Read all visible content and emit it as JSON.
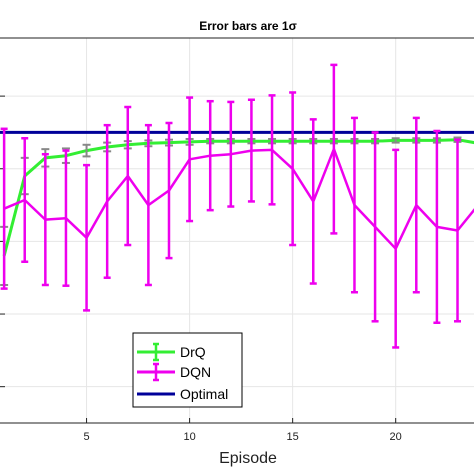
{
  "chart_data": {
    "type": "line",
    "title": "Error bars are 1σ",
    "xlabel": "Episode",
    "ylabel": "",
    "xlim": [
      0.8,
      23.8
    ],
    "ylim": [
      0,
      0.53
    ],
    "grid": true,
    "legend_position": "bottom-left",
    "x_ticks": [
      5,
      10,
      15,
      20
    ],
    "x_tick_labels": [
      "5",
      "10",
      "15",
      "20"
    ],
    "series": [
      {
        "name": "DrQ",
        "color": "#33ee33",
        "error_bar_color": "#888888",
        "x": [
          1,
          2,
          3,
          4,
          5,
          6,
          7,
          8,
          9,
          10,
          11,
          12,
          13,
          14,
          15,
          16,
          17,
          18,
          19,
          20,
          21,
          22,
          23,
          24
        ],
        "y": [
          0.23,
          0.34,
          0.365,
          0.368,
          0.375,
          0.38,
          0.383,
          0.385,
          0.386,
          0.387,
          0.388,
          0.388,
          0.388,
          0.388,
          0.388,
          0.388,
          0.388,
          0.388,
          0.388,
          0.389,
          0.389,
          0.389,
          0.39,
          0.385
        ],
        "err": [
          0.04,
          0.025,
          0.012,
          0.01,
          0.008,
          0.006,
          0.005,
          0.004,
          0.004,
          0.004,
          0.003,
          0.003,
          0.003,
          0.003,
          0.003,
          0.003,
          0.003,
          0.003,
          0.003,
          0.003,
          0.003,
          0.003,
          0.003,
          0.003
        ]
      },
      {
        "name": "DQN",
        "color": "#ee00ee",
        "x": [
          1,
          2,
          3,
          4,
          5,
          6,
          7,
          8,
          9,
          10,
          11,
          12,
          13,
          14,
          15,
          16,
          17,
          18,
          19,
          20,
          21,
          22,
          23,
          24
        ],
        "y": [
          0.295,
          0.307,
          0.28,
          0.282,
          0.255,
          0.305,
          0.34,
          0.3,
          0.32,
          0.363,
          0.368,
          0.37,
          0.375,
          0.376,
          0.35,
          0.305,
          0.377,
          0.3,
          0.27,
          0.24,
          0.3,
          0.27,
          0.265,
          0.3
        ],
        "err": [
          0.11,
          0.085,
          0.09,
          0.093,
          0.1,
          0.105,
          0.095,
          0.11,
          0.093,
          0.085,
          0.075,
          0.072,
          0.07,
          0.075,
          0.105,
          0.113,
          0.116,
          0.12,
          0.13,
          0.136,
          0.12,
          0.132,
          0.125,
          0.1
        ]
      },
      {
        "name": "Optimal",
        "color": "#000099",
        "x": [
          0.8,
          23.8
        ],
        "y": [
          0.4,
          0.4
        ]
      }
    ]
  }
}
